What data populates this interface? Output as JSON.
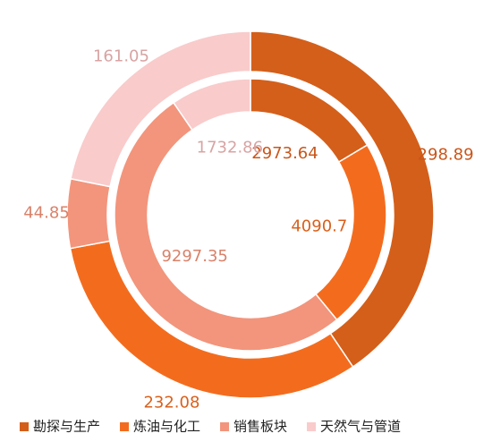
{
  "chart_data": {
    "type": "donut",
    "categories": [
      "勘探与生产",
      "炼油与化工",
      "销售板块",
      "天然气与管道"
    ],
    "colors": [
      "#d45f1a",
      "#f36c1e",
      "#f2957c",
      "#f9cbcb"
    ],
    "label_colors": [
      "#c9561a",
      "#d9601c",
      "#d9826a",
      "#d8a3a3"
    ],
    "rings": [
      {
        "values": [
          298.89,
          232.08,
          44.85,
          161.05
        ]
      },
      {
        "values": [
          2973.64,
          4090.7,
          9297.35,
          1732.86
        ]
      }
    ],
    "legend": "bottom"
  }
}
